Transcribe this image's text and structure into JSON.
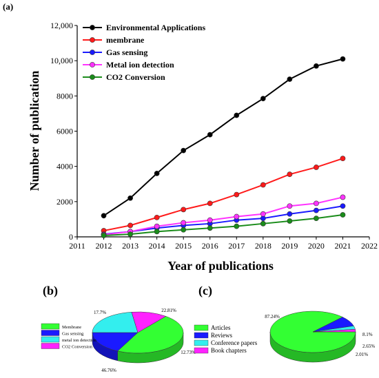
{
  "panel_labels": {
    "a": "(a)",
    "b": "(b)",
    "c": "(c)"
  },
  "chart_data": [
    {
      "type": "line",
      "panel": "(a)",
      "xlabel": "Year of publications",
      "ylabel": "Number of publication",
      "xlim": [
        2011,
        2022
      ],
      "ylim": [
        0,
        12000
      ],
      "x_ticks": [
        "2011",
        "2012",
        "2013",
        "2014",
        "2015",
        "2016",
        "2017",
        "2018",
        "2019",
        "2020",
        "2021",
        "2022"
      ],
      "y_ticks": [
        "0",
        "2000",
        "4000",
        "6000",
        "8000",
        "10,000",
        "12,000"
      ],
      "legend_position": "top-left",
      "grid": false,
      "x": [
        2012,
        2013,
        2014,
        2015,
        2016,
        2017,
        2018,
        2019,
        2020,
        2021
      ],
      "series": [
        {
          "name": "Environmental Applications",
          "color": "#000000",
          "values": [
            1200,
            2200,
            3600,
            4900,
            5800,
            6900,
            7850,
            8950,
            9700,
            10100
          ]
        },
        {
          "name": "membrane",
          "color": "#ff1a1a",
          "values": [
            350,
            650,
            1100,
            1550,
            1900,
            2400,
            2950,
            3550,
            3950,
            4450
          ]
        },
        {
          "name": "Gas sensing",
          "color": "#1a1aff",
          "values": [
            150,
            300,
            500,
            650,
            750,
            950,
            1050,
            1300,
            1500,
            1750
          ]
        },
        {
          "name": "Metal ion detection",
          "color": "#ff33ff",
          "values": [
            120,
            300,
            600,
            800,
            950,
            1150,
            1300,
            1750,
            1900,
            2250
          ]
        },
        {
          "name": "CO2 Conversion",
          "color": "#1a8c1a",
          "values": [
            80,
            150,
            300,
            400,
            500,
            600,
            750,
            900,
            1050,
            1250
          ]
        }
      ]
    },
    {
      "type": "pie",
      "panel": "(b)",
      "categories": [
        "Membrane",
        "Gas sensing",
        "metal ion detection",
        "CO2 Conversion"
      ],
      "values": [
        46.76,
        17.7,
        22.81,
        12.73
      ],
      "value_labels": [
        "46.76%",
        "17.7%",
        "22.81%",
        "12.73%"
      ],
      "colors": [
        "#33ff33",
        "#1a1aff",
        "#33eeee",
        "#ff22ff"
      ],
      "legend_position": "left"
    },
    {
      "type": "pie",
      "panel": "(c)",
      "categories": [
        "Articles",
        "Reviews",
        "Conference papers",
        "Book chapters"
      ],
      "values": [
        87.24,
        8.1,
        2.65,
        2.01
      ],
      "value_labels": [
        "87.24%",
        "8.1%",
        "2.65%",
        "2.01%"
      ],
      "colors": [
        "#33ff33",
        "#1a1aff",
        "#33eeee",
        "#ff22ff"
      ],
      "legend_position": "left"
    }
  ]
}
